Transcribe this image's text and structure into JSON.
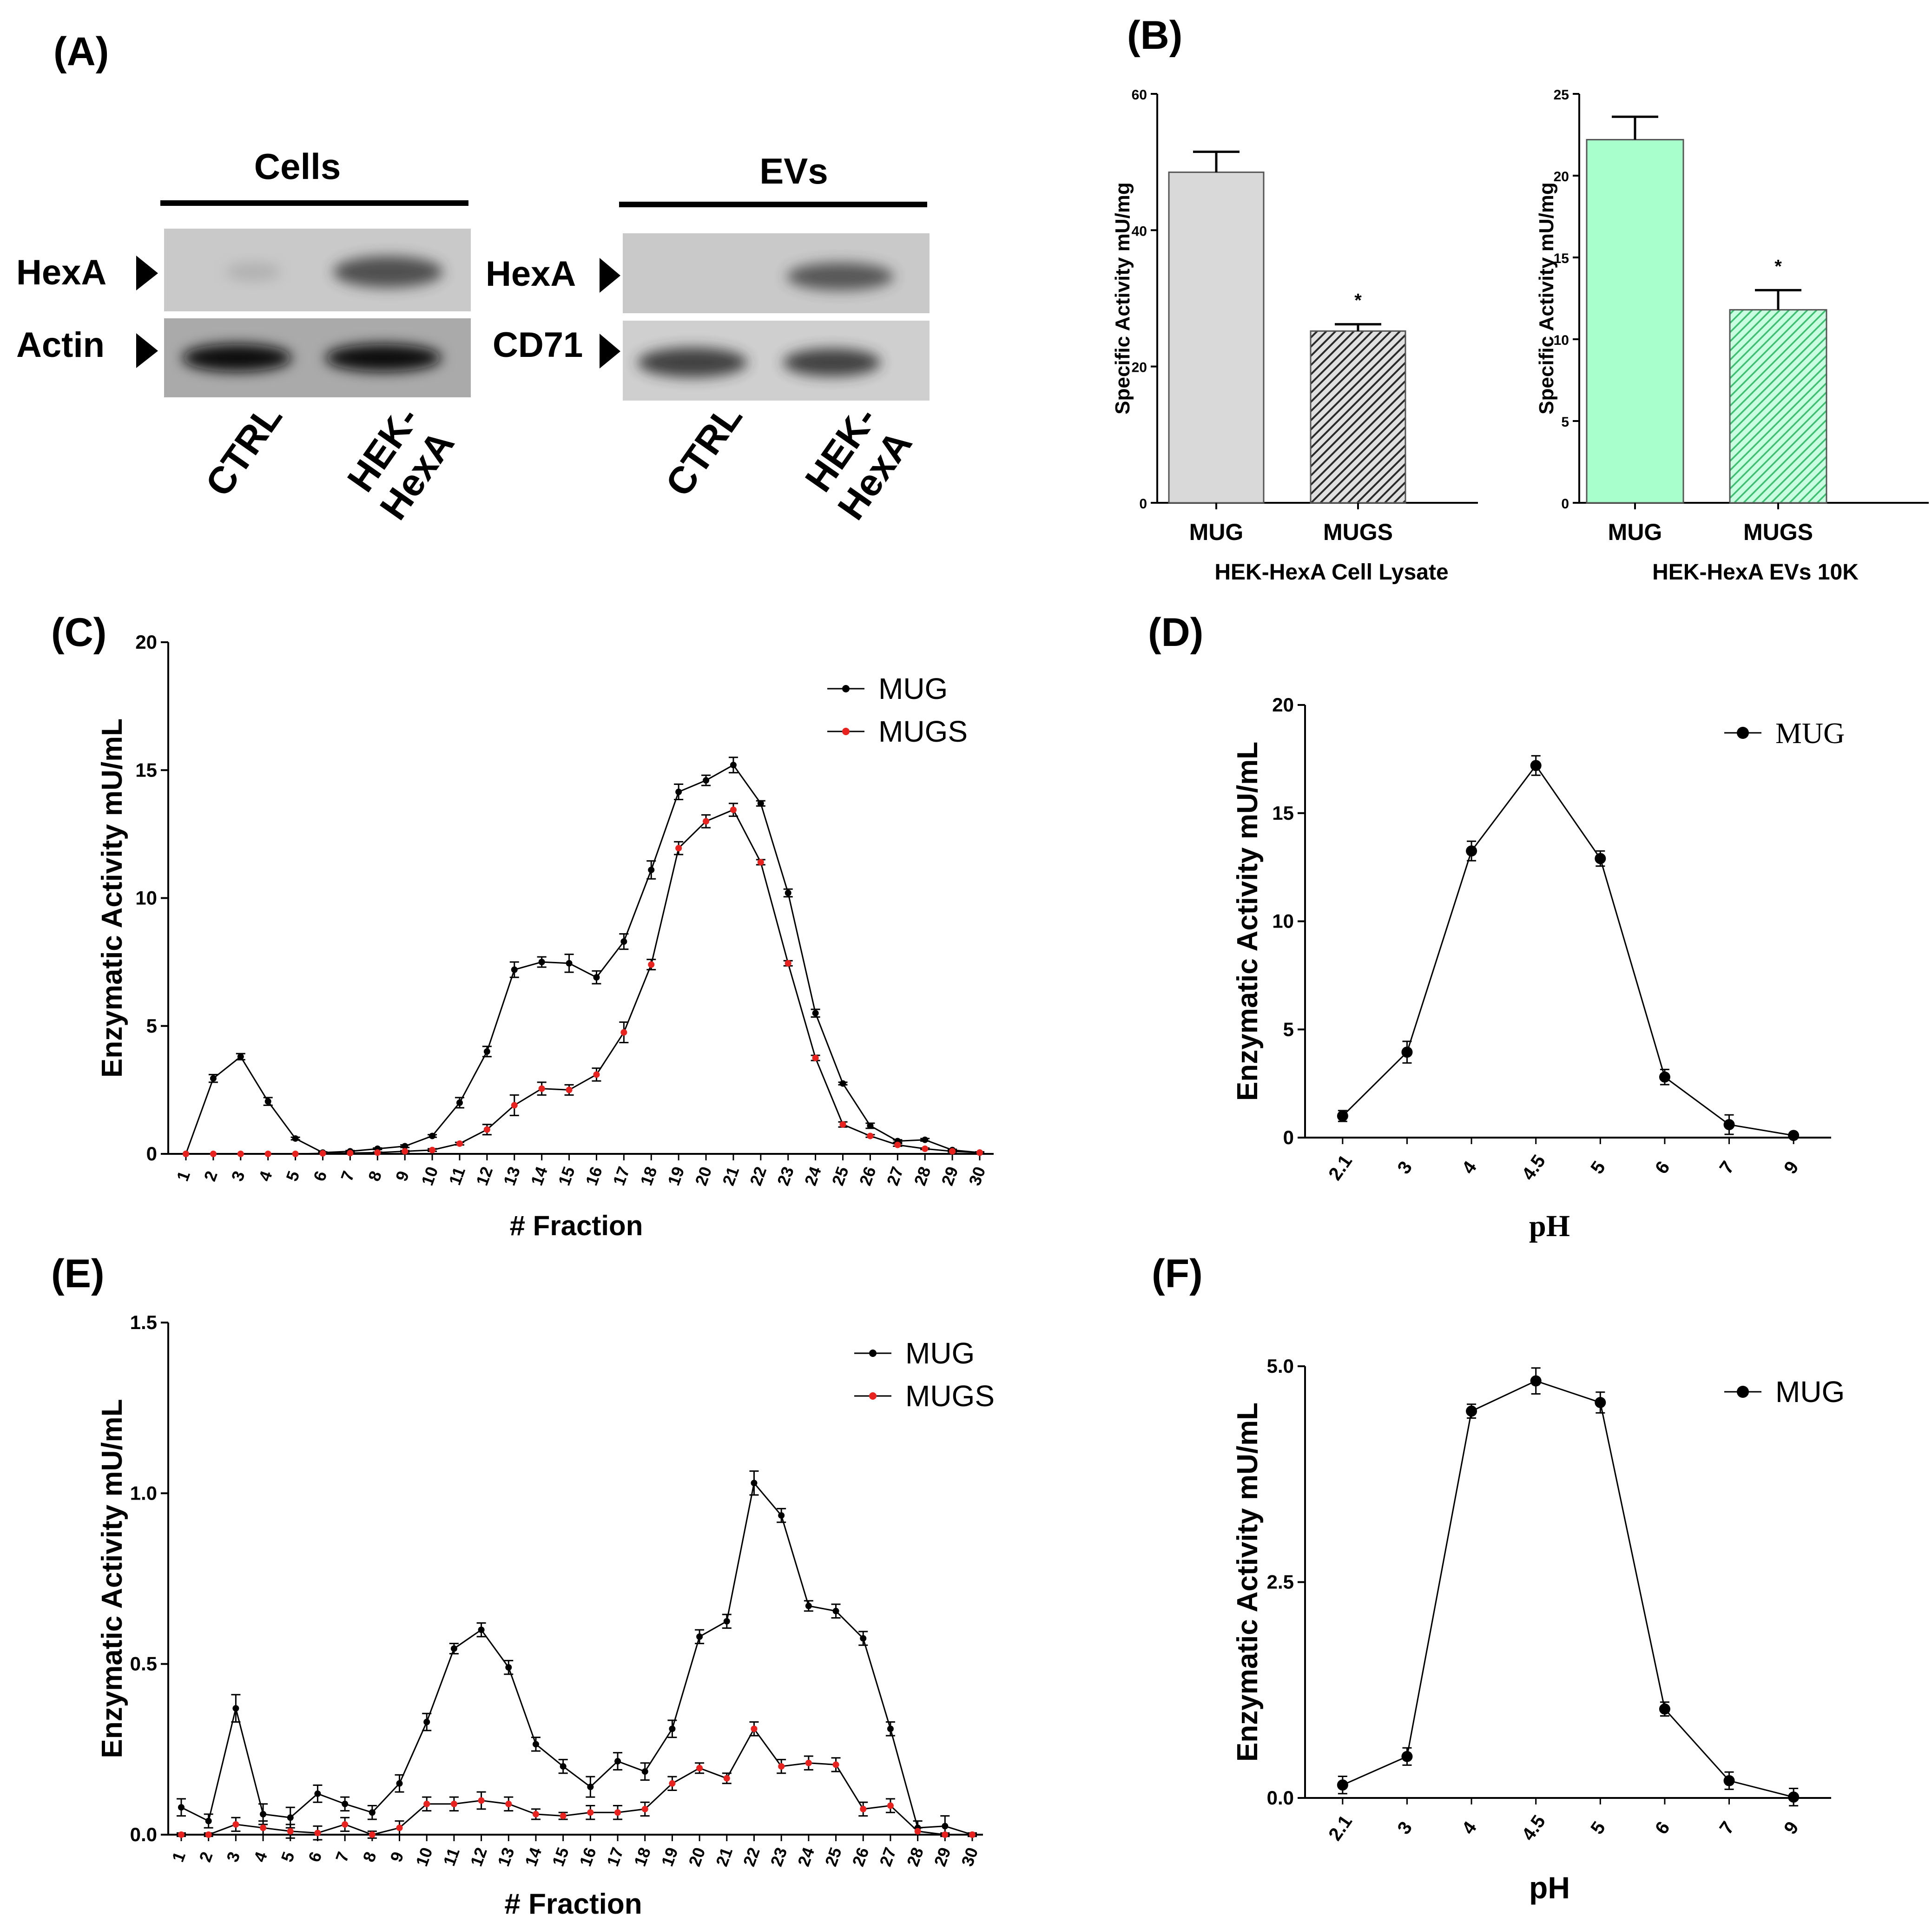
{
  "colors": {
    "black": "#000000",
    "red": "#e8231f",
    "gray_bar": "#d9d9d9",
    "dark_bar": "#3a3a3a",
    "green_bar": "#a8ffcc",
    "green_hatch": "#3fbf72"
  },
  "panels": {
    "A": {
      "label": "(A)",
      "cells_title": "Cells",
      "evs_title": "EVs",
      "cells_rows": [
        "HexA",
        "Actin"
      ],
      "evs_rows": [
        "HexA",
        "CD71"
      ],
      "lanes": [
        "CTRL",
        "HEK-HexA"
      ],
      "lane_lines": [
        [
          "CTRL"
        ],
        [
          "HEK-",
          "HexA"
        ]
      ]
    },
    "B": {
      "label": "(B)"
    },
    "C": {
      "label": "(C)"
    },
    "D": {
      "label": "(D)"
    },
    "E": {
      "label": "(E)"
    },
    "F": {
      "label": "(F)"
    }
  },
  "chart_data": [
    {
      "id": "B1",
      "type": "bar",
      "categories": [
        "MUG",
        "MUGS"
      ],
      "values": [
        48.5,
        25.2
      ],
      "errors": [
        3.0,
        1.0
      ],
      "significance": [
        "",
        "*"
      ],
      "ylabel": "Specific Activity mU/mg",
      "xlabel": "HEK-HexA Cell Lysate",
      "ylim": [
        0,
        60
      ],
      "yticks": [
        0,
        20,
        40,
        60
      ]
    },
    {
      "id": "B2",
      "type": "bar",
      "categories": [
        "MUG",
        "MUGS"
      ],
      "values": [
        22.2,
        11.8
      ],
      "errors": [
        1.4,
        1.2
      ],
      "significance": [
        "",
        "*"
      ],
      "ylabel": "Specific Activity mU/mg",
      "xlabel": "HEK-HexA EVs 10K",
      "ylim": [
        0,
        25
      ],
      "yticks": [
        0,
        5,
        10,
        15,
        20,
        25
      ]
    },
    {
      "id": "C",
      "type": "line",
      "x": [
        1,
        2,
        3,
        4,
        5,
        6,
        7,
        8,
        9,
        10,
        11,
        12,
        13,
        14,
        15,
        16,
        17,
        18,
        19,
        20,
        21,
        22,
        23,
        24,
        25,
        26,
        27,
        28,
        29,
        30
      ],
      "xlabel": "# Fraction",
      "ylabel": "Enzymatic Activity mU/mL",
      "ylim": [
        0,
        20
      ],
      "yticks": [
        0,
        5,
        10,
        15,
        20
      ],
      "series": [
        {
          "name": "MUG",
          "color": "#000000",
          "values": [
            0,
            2.95,
            3.8,
            2.05,
            0.6,
            0.05,
            0.1,
            0.2,
            0.3,
            0.7,
            2.0,
            4.0,
            7.2,
            7.5,
            7.45,
            6.9,
            8.3,
            11.1,
            14.15,
            14.6,
            15.2,
            13.7,
            10.2,
            5.5,
            2.75,
            1.1,
            0.5,
            0.55,
            0.15,
            0.05
          ],
          "errors": [
            0,
            0.15,
            0.12,
            0.15,
            0.05,
            0.03,
            0.03,
            0.03,
            0.05,
            0.05,
            0.2,
            0.2,
            0.3,
            0.2,
            0.35,
            0.25,
            0.3,
            0.35,
            0.3,
            0.2,
            0.3,
            0.1,
            0.15,
            0.15,
            0.05,
            0.1,
            0.05,
            0.05,
            0.03,
            0.03
          ]
        },
        {
          "name": "MUGS",
          "color": "#e8231f",
          "values": [
            0,
            0,
            0,
            0,
            0,
            0.02,
            0.03,
            0.05,
            0.1,
            0.15,
            0.4,
            0.95,
            1.9,
            2.55,
            2.5,
            3.1,
            4.75,
            7.4,
            11.95,
            13.0,
            13.45,
            11.4,
            7.45,
            3.75,
            1.15,
            0.7,
            0.35,
            0.2,
            0.1,
            0.05
          ],
          "errors": [
            0,
            0,
            0,
            0,
            0,
            0.02,
            0.02,
            0.02,
            0.03,
            0.05,
            0.05,
            0.2,
            0.4,
            0.25,
            0.2,
            0.25,
            0.4,
            0.2,
            0.25,
            0.25,
            0.25,
            0.1,
            0.1,
            0.1,
            0.1,
            0.05,
            0.05,
            0.03,
            0.03,
            0.02
          ]
        }
      ]
    },
    {
      "id": "D",
      "type": "line",
      "categories": [
        "2.1",
        "3",
        "4",
        "4.5",
        "5",
        "6",
        "7",
        "9"
      ],
      "xlabel": "pH",
      "ylabel": "Enzymatic Activity mU/mL",
      "ylim": [
        0,
        20
      ],
      "yticks": [
        0,
        5,
        10,
        15,
        20
      ],
      "series": [
        {
          "name": "MUG",
          "color": "#000000",
          "values": [
            1.0,
            3.95,
            13.25,
            17.2,
            12.9,
            2.8,
            0.6,
            0.1
          ],
          "errors": [
            0.25,
            0.5,
            0.45,
            0.45,
            0.35,
            0.35,
            0.45,
            0.05
          ]
        }
      ]
    },
    {
      "id": "E",
      "type": "line",
      "x": [
        1,
        2,
        3,
        4,
        5,
        6,
        7,
        8,
        9,
        10,
        11,
        12,
        13,
        14,
        15,
        16,
        17,
        18,
        19,
        20,
        21,
        22,
        23,
        24,
        25,
        26,
        27,
        28,
        29,
        30
      ],
      "xlabel": "# Fraction",
      "ylabel": "Enzymatic Activity mU/mL",
      "ylim": [
        0,
        1.5
      ],
      "yticks": [
        "0.0",
        "0.5",
        "1.0",
        "1.5"
      ],
      "series": [
        {
          "name": "MUG",
          "color": "#000000",
          "values": [
            0.08,
            0.04,
            0.37,
            0.06,
            0.05,
            0.12,
            0.09,
            0.065,
            0.15,
            0.33,
            0.545,
            0.6,
            0.49,
            0.265,
            0.2,
            0.14,
            0.215,
            0.185,
            0.31,
            0.58,
            0.625,
            1.03,
            0.935,
            0.67,
            0.655,
            0.575,
            0.31,
            0.02,
            0.025,
            0.0
          ],
          "errors": [
            0.025,
            0.02,
            0.04,
            0.03,
            0.03,
            0.025,
            0.02,
            0.02,
            0.025,
            0.025,
            0.015,
            0.02,
            0.02,
            0.02,
            0.02,
            0.03,
            0.025,
            0.025,
            0.025,
            0.02,
            0.02,
            0.035,
            0.02,
            0.015,
            0.02,
            0.02,
            0.02,
            0.02,
            0.03,
            0.005
          ]
        },
        {
          "name": "MUGS",
          "color": "#e8231f",
          "values": [
            0.0,
            0.0,
            0.03,
            0.02,
            0.01,
            0.005,
            0.03,
            0.0,
            0.02,
            0.09,
            0.09,
            0.1,
            0.09,
            0.06,
            0.055,
            0.065,
            0.065,
            0.075,
            0.15,
            0.195,
            0.165,
            0.31,
            0.2,
            0.21,
            0.205,
            0.075,
            0.085,
            0.01,
            0.0,
            0.0
          ],
          "errors": [
            0.005,
            0.005,
            0.02,
            0.02,
            0.02,
            0.02,
            0.02,
            0.01,
            0.02,
            0.02,
            0.02,
            0.025,
            0.02,
            0.015,
            0.01,
            0.02,
            0.02,
            0.02,
            0.02,
            0.015,
            0.015,
            0.02,
            0.02,
            0.02,
            0.02,
            0.02,
            0.02,
            0.01,
            0.005,
            0.005
          ]
        }
      ]
    },
    {
      "id": "F",
      "type": "line",
      "categories": [
        "2.1",
        "3",
        "4",
        "4.5",
        "5",
        "6",
        "7",
        "9"
      ],
      "xlabel": "pH",
      "ylabel": "Enzymatic Activity mU/mL",
      "ylim": [
        0,
        5
      ],
      "yticks": [
        "0.0",
        "2.5",
        "5.0"
      ],
      "series": [
        {
          "name": "MUG",
          "color": "#000000",
          "values": [
            0.15,
            0.48,
            4.48,
            4.83,
            4.58,
            1.03,
            0.2,
            0.01
          ],
          "errors": [
            0.1,
            0.1,
            0.08,
            0.15,
            0.12,
            0.08,
            0.1,
            0.1
          ]
        }
      ]
    }
  ]
}
